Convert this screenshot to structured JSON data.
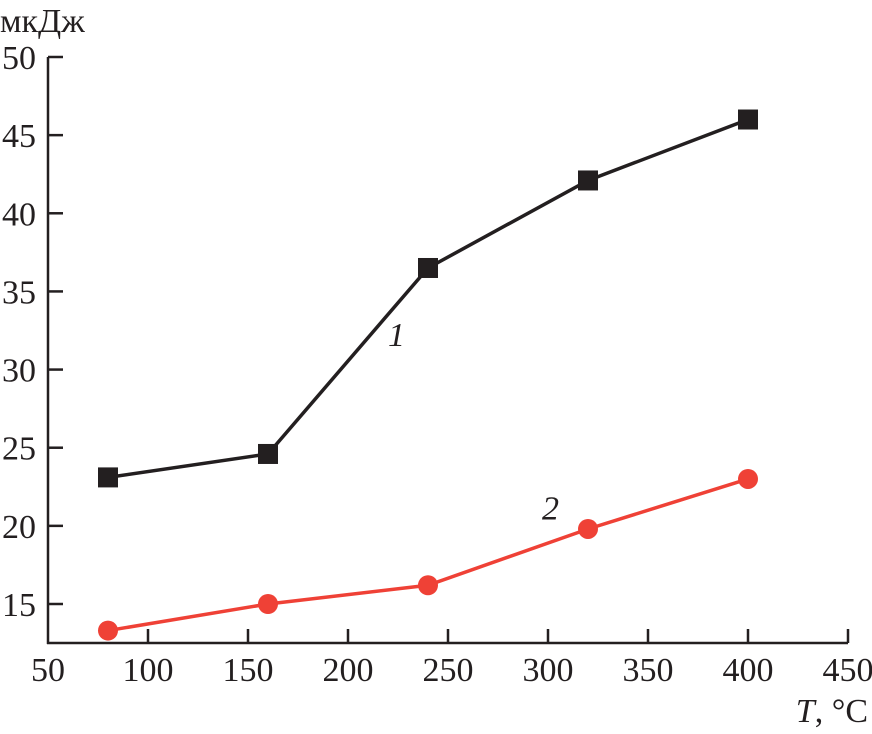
{
  "chart_data": {
    "type": "line",
    "title": "",
    "xlabel_var": "T",
    "xlabel_unit": ", °C",
    "ylabel": "мкДж",
    "xlim": [
      50,
      450
    ],
    "ylim": [
      12.7,
      50
    ],
    "xticks": [
      50,
      100,
      150,
      200,
      250,
      300,
      350,
      400,
      450
    ],
    "yticks": [
      15,
      20,
      25,
      30,
      35,
      40,
      45,
      50
    ],
    "grid": false,
    "x": [
      80,
      160,
      240,
      320,
      400
    ],
    "series": [
      {
        "name": "1",
        "values": [
          23.1,
          24.6,
          36.5,
          42.1,
          46.0
        ],
        "color": "#231f20",
        "marker": "square",
        "label_at": [
          220,
          31.5
        ]
      },
      {
        "name": "2",
        "values": [
          13.3,
          15.0,
          16.2,
          19.8,
          23.0
        ],
        "color": "#ef4136",
        "marker": "circle",
        "label_at": [
          297,
          20.4
        ]
      }
    ]
  }
}
